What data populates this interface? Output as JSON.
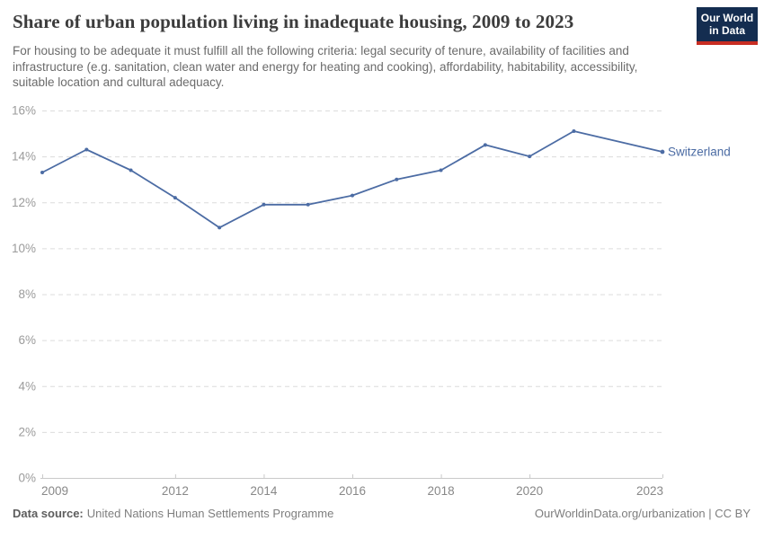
{
  "header": {
    "title": "Share of urban population living in inadequate housing, 2009 to 2023",
    "subtitle": "For housing to be adequate it must fulfill all the following criteria: legal security of tenure, availability of facilities and infrastructure (e.g. sanitation, clean water and energy for heating and cooking), affordability, habitability, accessibility, suitable location and cultural adequacy.",
    "logo": {
      "line1": "Our World",
      "line2": "in Data"
    }
  },
  "chart_data": {
    "type": "line",
    "title": "Share of urban population living in inadequate housing, 2009 to 2023",
    "x": [
      2009,
      2010,
      2011,
      2012,
      2013,
      2014,
      2015,
      2016,
      2017,
      2018,
      2019,
      2020,
      2021,
      2023
    ],
    "series": [
      {
        "name": "Switzerland",
        "color": "#4c6ca4",
        "values": [
          13.3,
          14.3,
          13.4,
          12.2,
          10.9,
          11.9,
          11.9,
          12.3,
          13.0,
          13.4,
          14.5,
          14.0,
          15.1,
          14.2
        ]
      }
    ],
    "xlim": [
      2009,
      2023
    ],
    "ylim": [
      0,
      16
    ],
    "x_ticks_shown": [
      2009,
      2012,
      2014,
      2016,
      2018,
      2020,
      2023
    ],
    "y_ticks": [
      0,
      2,
      4,
      6,
      8,
      10,
      12,
      14,
      16
    ],
    "y_tick_suffix": "%",
    "grid": "horizontal-dashed",
    "legend": "line-end-label"
  },
  "footer": {
    "source_label": "Data source:",
    "source_value": "United Nations Human Settlements Programme",
    "right_text": "OurWorldinData.org/urbanization | CC BY"
  },
  "colors": {
    "line": "#4c6ca4",
    "gridline": "#dcdcdc",
    "axis": "#c9c9c9",
    "y_tick_label": "#9b9b9b",
    "x_tick_label": "#888888",
    "title": "#3c3c3c",
    "subtitle": "#6b6b6b",
    "logo_bg": "#142d50",
    "logo_stripe": "#c82d23"
  }
}
